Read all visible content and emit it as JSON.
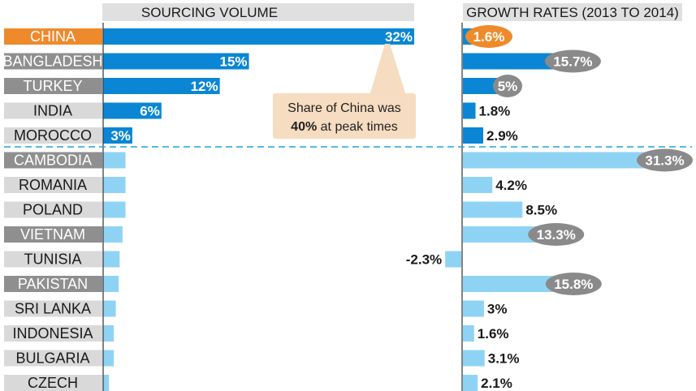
{
  "colors": {
    "dark_blue": "#0a86d4",
    "light_blue": "#8fd3f4",
    "china_orange": "#ee8a2c",
    "grey_label": "#8f8f8f",
    "light_grey_label": "#d9d9d9",
    "header_bg": "#e0e0e0",
    "callout_bg": "#f6dcc0",
    "bubble_grey": "#8a8a8a",
    "divider": "#22a3dc"
  },
  "chart_data": [
    {
      "type": "bar",
      "title": "SOURCING VOLUME",
      "categories": [
        "CHINA",
        "BANGLADESH",
        "TURKEY",
        "INDIA",
        "MOROCCO",
        "CAMBODIA",
        "ROMANIA",
        "POLAND",
        "VIETNAM",
        "TUNISIA",
        "PAKISTAN",
        "SRI LANKA",
        "INDONESIA",
        "BULGARIA",
        "CZECH"
      ],
      "values": [
        32,
        15,
        12,
        6,
        3,
        2.3,
        2.3,
        2.3,
        2.0,
        1.7,
        1.6,
        1.3,
        1.1,
        1.1,
        0.6
      ],
      "value_labels": [
        "32%",
        "15%",
        "12%",
        "6%",
        "3%",
        "",
        "",
        "",
        "",
        "",
        "",
        "",
        "",
        "",
        ""
      ],
      "xlim": [
        0,
        32
      ],
      "annotation": {
        "line1": "Share of China was",
        "bold": "40%",
        "rest": " at peak times"
      }
    },
    {
      "type": "bar",
      "title": "GROWTH RATES (2013 TO 2014)",
      "categories": [
        "CHINA",
        "BANGLADESH",
        "TURKEY",
        "INDIA",
        "MOROCCO",
        "CAMBODIA",
        "ROMANIA",
        "POLAND",
        "VIETNAM",
        "TUNISIA",
        "PAKISTAN",
        "SRI LANKA",
        "INDONESIA",
        "BULGARIA",
        "CZECH"
      ],
      "values": [
        1.6,
        15.7,
        5,
        1.8,
        2.9,
        31.3,
        4.2,
        8.5,
        13.3,
        -2.3,
        15.8,
        3,
        1.6,
        3.1,
        2.1
      ],
      "value_labels": [
        "1.6%",
        "15.7%",
        "5%",
        "1.8%",
        "2.9%",
        "31.3%",
        "4.2%",
        "8.5%",
        "13.3%",
        "-2.3%",
        "15.8%",
        "3%",
        "1.6%",
        "3.1%",
        "2.1%"
      ],
      "label_style": [
        "orange-bubble",
        "grey-bubble",
        "grey-bubble",
        "plain",
        "plain",
        "grey-bubble",
        "plain",
        "plain",
        "grey-bubble",
        "plain",
        "grey-bubble",
        "plain",
        "plain",
        "plain",
        "plain"
      ]
    }
  ],
  "label_styles": [
    "orange",
    "grey",
    "grey",
    "light",
    "light",
    "grey",
    "light",
    "light",
    "grey",
    "light",
    "grey",
    "light",
    "light",
    "light",
    "light"
  ]
}
